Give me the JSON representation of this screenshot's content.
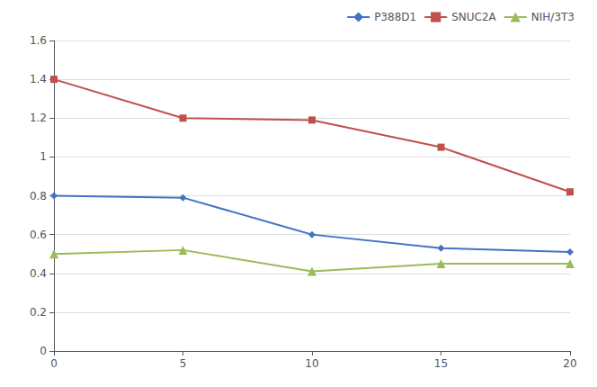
{
  "chart_data": {
    "type": "line",
    "x": [
      0,
      5,
      10,
      15,
      20
    ],
    "series": [
      {
        "name": "P388D1",
        "color": "#4472C4",
        "marker": "diamond",
        "values": [
          0.8,
          0.79,
          0.6,
          0.53,
          0.51
        ]
      },
      {
        "name": "SNUC2A",
        "color": "#C0504D",
        "marker": "square",
        "values": [
          1.4,
          1.2,
          1.19,
          1.05,
          0.82
        ]
      },
      {
        "name": "NIH/3T3",
        "color": "#9BBB59",
        "marker": "triangle",
        "values": [
          0.5,
          0.52,
          0.41,
          0.45,
          0.45
        ]
      }
    ],
    "xlim": [
      0,
      20
    ],
    "xticks": [
      0,
      5,
      10,
      15,
      20
    ],
    "ylim": [
      0,
      1.6
    ],
    "yticks": [
      0,
      0.2,
      0.4,
      0.6,
      0.8,
      1,
      1.2,
      1.4,
      1.6
    ],
    "grid": "y",
    "legend": "upper right"
  }
}
